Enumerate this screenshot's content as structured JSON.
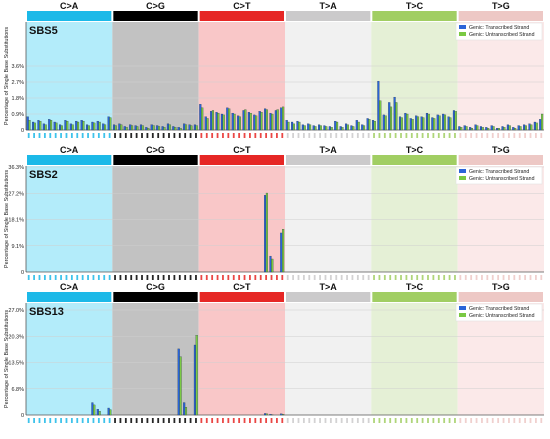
{
  "colors": {
    "transcribed": "#2a64d8",
    "untranscribed": "#7ac943",
    "bar_outline": "#1b2e3c"
  },
  "mutation_classes": [
    {
      "label": "C>A",
      "bar_color": "#1cb9e8",
      "panel_color": "#b3ecfa"
    },
    {
      "label": "C>G",
      "bar_color": "#000000",
      "panel_color": "#c2c2c2"
    },
    {
      "label": "C>T",
      "bar_color": "#e62725",
      "panel_color": "#f9c7c8"
    },
    {
      "label": "T>A",
      "bar_color": "#cbcacb",
      "panel_color": "#f1f1f1"
    },
    {
      "label": "T>C",
      "bar_color": "#a1ce63",
      "panel_color": "#e5f0d6"
    },
    {
      "label": "T>G",
      "bar_color": "#edc8c5",
      "panel_color": "#fbe9e9"
    }
  ],
  "chart_data": [
    {
      "type": "bar",
      "title": "SBS5",
      "ylabel": "Percentage of Single Base Substitutions",
      "ylim": [
        0,
        3.6
      ],
      "yticks": [
        "0",
        "0.9%",
        "1.8%",
        "2.7%",
        "3.6%"
      ],
      "legend": {
        "placement": "top-right"
      },
      "grid": true,
      "categories_per_class": 16,
      "series": [
        {
          "name": "Genic: Transcribed Strand",
          "values": [
            0.75,
            0.45,
            0.55,
            0.35,
            0.6,
            0.45,
            0.3,
            0.55,
            0.35,
            0.5,
            0.55,
            0.3,
            0.45,
            0.5,
            0.35,
            0.75,
            0.3,
            0.35,
            0.2,
            0.3,
            0.25,
            0.3,
            0.15,
            0.3,
            0.25,
            0.2,
            0.35,
            0.2,
            0.15,
            0.35,
            0.3,
            0.3,
            1.45,
            0.75,
            1.05,
            1.0,
            0.9,
            1.25,
            0.95,
            0.8,
            1.1,
            1.0,
            0.85,
            1.05,
            1.2,
            0.95,
            1.1,
            1.25,
            0.55,
            0.45,
            0.5,
            0.3,
            0.35,
            0.25,
            0.3,
            0.25,
            0.2,
            0.5,
            0.2,
            0.35,
            0.25,
            0.55,
            0.3,
            0.65,
            0.55,
            2.75,
            0.85,
            1.55,
            1.85,
            0.75,
            0.95,
            0.65,
            0.8,
            0.75,
            0.95,
            0.7,
            0.85,
            0.9,
            0.75,
            1.1,
            0.2,
            0.25,
            0.15,
            0.3,
            0.2,
            0.15,
            0.25,
            0.1,
            0.2,
            0.3,
            0.15,
            0.25,
            0.3,
            0.35,
            0.45,
            0.6
          ]
        },
        {
          "name": "Genic: Untranscribed Strand",
          "values": [
            0.55,
            0.4,
            0.5,
            0.3,
            0.55,
            0.4,
            0.25,
            0.5,
            0.3,
            0.45,
            0.5,
            0.25,
            0.4,
            0.45,
            0.3,
            0.7,
            0.25,
            0.3,
            0.15,
            0.25,
            0.2,
            0.25,
            0.1,
            0.25,
            0.2,
            0.15,
            0.3,
            0.15,
            0.1,
            0.3,
            0.25,
            0.25,
            1.25,
            0.65,
            1.1,
            0.95,
            0.85,
            1.2,
            0.9,
            0.75,
            1.15,
            0.95,
            0.8,
            1.0,
            1.15,
            0.9,
            1.15,
            1.3,
            0.45,
            0.35,
            0.45,
            0.25,
            0.3,
            0.2,
            0.25,
            0.2,
            0.15,
            0.45,
            0.15,
            0.3,
            0.2,
            0.45,
            0.25,
            0.6,
            0.5,
            1.65,
            0.8,
            1.3,
            1.55,
            0.7,
            0.9,
            0.6,
            0.75,
            0.7,
            0.9,
            0.65,
            0.8,
            0.85,
            0.7,
            1.05,
            0.15,
            0.2,
            0.1,
            0.25,
            0.15,
            0.1,
            0.2,
            0.1,
            0.15,
            0.25,
            0.1,
            0.2,
            0.25,
            0.3,
            0.4,
            0.9
          ]
        }
      ]
    },
    {
      "type": "bar",
      "title": "SBS2",
      "ylabel": "Percentage of Single Base Substitutions",
      "ylim": [
        0,
        36.3
      ],
      "yticks": [
        "0",
        "9.1%",
        "18.1%",
        "27.2%",
        "36.3%"
      ],
      "legend": {
        "placement": "top-right"
      },
      "grid": true,
      "categories_per_class": 16,
      "series": [
        {
          "name": "Genic: Transcribed Strand",
          "values": [
            0,
            0,
            0,
            0,
            0,
            0,
            0,
            0,
            0,
            0,
            0,
            0,
            0,
            0,
            0,
            0,
            0,
            0,
            0,
            0,
            0,
            0,
            0,
            0,
            0,
            0,
            0,
            0,
            0,
            0,
            0,
            0,
            0,
            0,
            0,
            0,
            0,
            0,
            0,
            0,
            0,
            0,
            0,
            0,
            26.5,
            5.5,
            0,
            13.5,
            0,
            0,
            0,
            0,
            0,
            0,
            0,
            0,
            0,
            0,
            0,
            0,
            0,
            0,
            0,
            0,
            0,
            0,
            0,
            0,
            0,
            0,
            0,
            0,
            0,
            0,
            0,
            0,
            0,
            0,
            0,
            0,
            0,
            0,
            0,
            0,
            0,
            0,
            0,
            0,
            0,
            0,
            0,
            0,
            0,
            0,
            0,
            0
          ]
        },
        {
          "name": "Genic: Untranscribed Strand",
          "values": [
            0,
            0,
            0,
            0,
            0,
            0,
            0,
            0,
            0,
            0,
            0,
            0,
            0,
            0,
            0,
            0,
            0,
            0,
            0,
            0,
            0,
            0,
            0,
            0,
            0,
            0,
            0,
            0,
            0,
            0,
            0,
            0,
            0,
            0,
            0,
            0,
            0,
            0,
            0,
            0,
            0,
            0,
            0,
            0,
            27.3,
            4.5,
            0,
            14.8,
            0,
            0,
            0,
            0,
            0,
            0,
            0,
            0,
            0,
            0,
            0,
            0,
            0,
            0,
            0,
            0,
            0,
            0,
            0,
            0,
            0,
            0,
            0,
            0,
            0,
            0,
            0,
            0,
            0,
            0,
            0,
            0,
            0,
            0,
            0,
            0,
            0,
            0,
            0,
            0,
            0,
            0,
            0,
            0,
            0,
            0,
            0,
            0
          ]
        }
      ]
    },
    {
      "type": "bar",
      "title": "SBS13",
      "ylabel": "Percentage of Single Base Substitutions",
      "ylim": [
        0,
        27.0
      ],
      "yticks": [
        "0",
        "6.8%",
        "13.5%",
        "20.3%",
        "27.0%"
      ],
      "legend": {
        "placement": "top-right"
      },
      "grid": true,
      "categories_per_class": 16,
      "series": [
        {
          "name": "Genic: Transcribed Strand",
          "values": [
            0,
            0,
            0,
            0,
            0,
            0,
            0,
            0,
            0,
            0,
            0,
            0,
            3.2,
            1.5,
            0,
            1.8,
            0,
            0,
            0,
            0,
            0,
            0,
            0,
            0,
            0,
            0,
            0,
            0,
            17.0,
            3.2,
            0,
            18.0,
            0,
            0,
            0,
            0,
            0,
            0,
            0,
            0,
            0,
            0,
            0,
            0,
            0.4,
            0.2,
            0,
            0.3,
            0,
            0,
            0,
            0,
            0,
            0,
            0,
            0,
            0,
            0,
            0,
            0,
            0,
            0,
            0,
            0,
            0,
            0,
            0,
            0,
            0,
            0,
            0,
            0,
            0,
            0,
            0,
            0,
            0,
            0,
            0,
            0,
            0,
            0,
            0,
            0,
            0,
            0,
            0,
            0,
            0,
            0,
            0,
            0,
            0,
            0,
            0,
            0
          ]
        },
        {
          "name": "Genic: Untranscribed Strand",
          "values": [
            0,
            0,
            0,
            0,
            0,
            0,
            0,
            0,
            0,
            0,
            0,
            0,
            2.6,
            1.0,
            0,
            1.4,
            0,
            0,
            0,
            0,
            0,
            0,
            0,
            0,
            0,
            0,
            0,
            0,
            15.0,
            2.0,
            0,
            20.5,
            0,
            0,
            0,
            0,
            0,
            0,
            0,
            0,
            0,
            0,
            0,
            0,
            0.3,
            0.1,
            0,
            0.2,
            0,
            0,
            0,
            0,
            0,
            0,
            0,
            0,
            0,
            0,
            0,
            0,
            0,
            0,
            0,
            0,
            0,
            0,
            0,
            0,
            0,
            0,
            0,
            0,
            0,
            0,
            0,
            0,
            0,
            0,
            0,
            0,
            0,
            0,
            0,
            0,
            0,
            0,
            0,
            0,
            0,
            0,
            0,
            0,
            0,
            0,
            0,
            0
          ]
        }
      ]
    }
  ]
}
